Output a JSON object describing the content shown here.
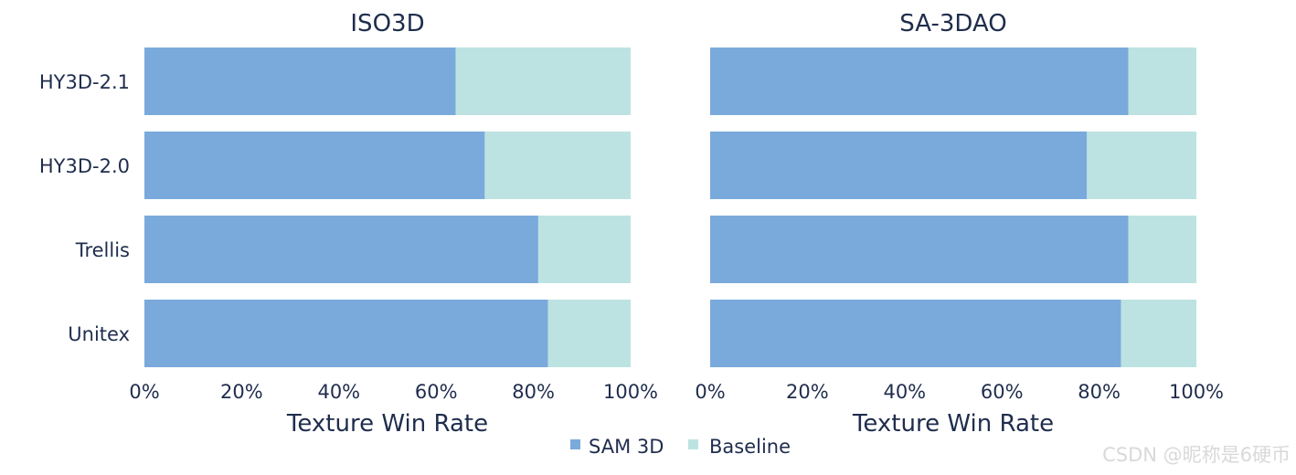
{
  "colors": {
    "sam3d": "#7aaadb",
    "baseline": "#bce3e1",
    "text": "#1f2d4d"
  },
  "chart_data": [
    {
      "type": "bar",
      "orientation": "horizontal",
      "stacked": true,
      "title": "ISO3D",
      "xlabel": "Texture Win Rate",
      "xlim": [
        0,
        100
      ],
      "xticks": [
        "0%",
        "20%",
        "40%",
        "60%",
        "80%",
        "100%"
      ],
      "categories": [
        "HY3D-2.1",
        "HY3D-2.0",
        "Trellis",
        "Unitex"
      ],
      "series": [
        {
          "name": "SAM 3D",
          "values": [
            64,
            70,
            81,
            83
          ]
        },
        {
          "name": "Baseline",
          "values": [
            36,
            30,
            19,
            17
          ]
        }
      ]
    },
    {
      "type": "bar",
      "orientation": "horizontal",
      "stacked": true,
      "title": "SA-3DAO",
      "xlabel": "Texture Win Rate",
      "xlim": [
        0,
        100
      ],
      "xticks": [
        "0%",
        "20%",
        "40%",
        "60%",
        "80%",
        "100%"
      ],
      "categories": [
        "HY3D-2.1",
        "HY3D-2.0",
        "Trellis",
        "Unitex"
      ],
      "series": [
        {
          "name": "SAM 3D",
          "values": [
            86,
            77.5,
            86,
            84.5
          ]
        },
        {
          "name": "Baseline",
          "values": [
            14,
            22.5,
            14,
            15.5
          ]
        }
      ]
    }
  ],
  "legend": {
    "items": [
      "SAM 3D",
      "Baseline"
    ]
  },
  "watermark": "CSDN @昵称是6硬币"
}
